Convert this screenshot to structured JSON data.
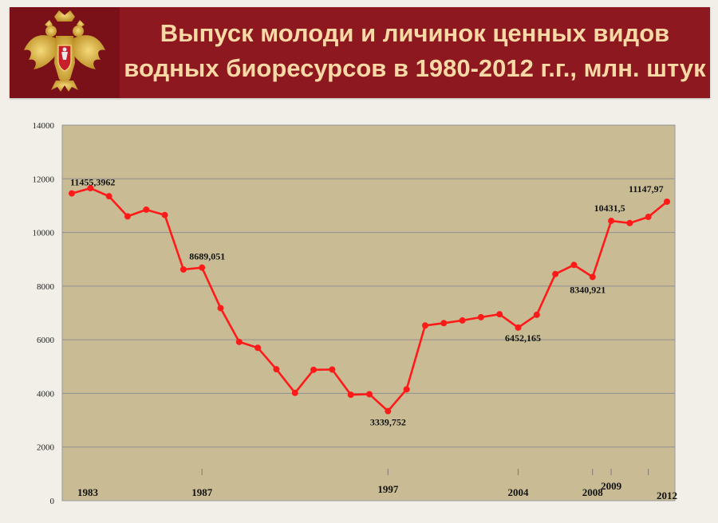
{
  "header": {
    "title_line1": "Выпуск молоди и личинок ценных видов",
    "title_line2": "водных биоресурсов в 1980-2012 г.г., млн. штук",
    "emblem_icon": "double-headed-eagle-icon"
  },
  "colors": {
    "header_bg": "#8e1820",
    "title_text": "#f7d9a6",
    "plot_bg": "#c9bc95",
    "series_line": "#ff1a1a"
  },
  "chart_data": {
    "type": "line",
    "title": "",
    "xlabel": "",
    "ylabel": "",
    "ylim": [
      0,
      14000
    ],
    "y_ticks": [
      "0",
      "2000",
      "4000",
      "6000",
      "8000",
      "10000",
      "12000",
      "14000"
    ],
    "grid": true,
    "legend": "none",
    "x": [
      1980,
      1981,
      1982,
      1983,
      1984,
      1985,
      1986,
      1987,
      1988,
      1989,
      1990,
      1991,
      1992,
      1993,
      1994,
      1995,
      1996,
      1997,
      1998,
      1999,
      2000,
      2001,
      2002,
      2003,
      2004,
      2005,
      2006,
      2007,
      2008,
      2009,
      2010,
      2011,
      2012
    ],
    "values": [
      11455.3962,
      11650,
      11350,
      10600,
      10850,
      10650,
      8620,
      8689.051,
      7180,
      5920,
      5700,
      4900,
      4020,
      4880,
      4890,
      3950,
      3970,
      3339.752,
      4150,
      6530,
      6620,
      6720,
      6840,
      6950,
      6452.165,
      6930,
      8450,
      8790,
      8340.921,
      10431.5,
      10350,
      10580,
      11147.97
    ],
    "x_tick_labels": [
      {
        "year": 1983,
        "text": "1983"
      },
      {
        "year": 1987,
        "text": "1987"
      },
      {
        "year": 1997,
        "text": "1997"
      },
      {
        "year": 2004,
        "text": "2004"
      },
      {
        "year": 2008,
        "text": "2008"
      },
      {
        "year": 2009,
        "text": "2009"
      },
      {
        "year": 2012,
        "text": "2012"
      }
    ],
    "x_tick_marks": [
      1987,
      1997,
      2004,
      2008,
      2009,
      2011
    ],
    "data_labels": [
      {
        "year": 1980,
        "text": "11455,3962"
      },
      {
        "year": 1987,
        "text": "8689,051"
      },
      {
        "year": 1997,
        "text": "3339,752"
      },
      {
        "year": 2004,
        "text": "6452,165"
      },
      {
        "year": 2008,
        "text": "8340,921"
      },
      {
        "year": 2009,
        "text": "10431,5"
      },
      {
        "year": 2012,
        "text": "11147,97"
      }
    ]
  }
}
